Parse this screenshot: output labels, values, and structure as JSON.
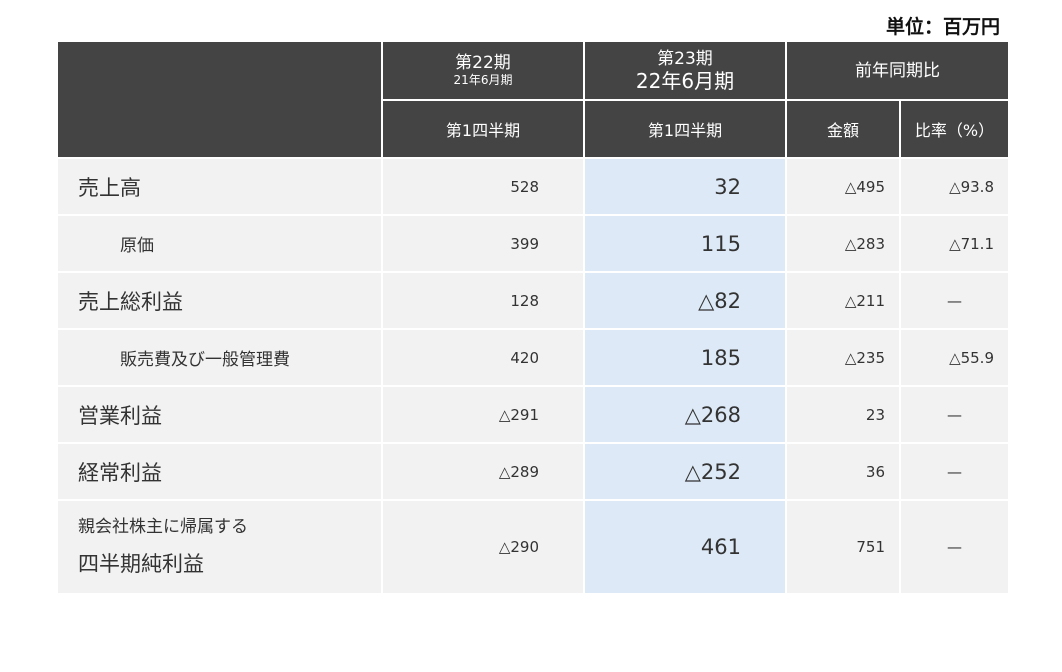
{
  "unit_label": "単位：百万円",
  "header": {
    "col_prev_main": "第22期",
    "col_prev_sub": "21年6月期",
    "col_curr_main": "第23期",
    "col_curr_sub": "22年6月期",
    "col_yoy": "前年同期比",
    "prev_quarter": "第1四半期",
    "curr_quarter": "第1四半期",
    "amount": "金額",
    "ratio": "比率（%）"
  },
  "rows": [
    {
      "label": "売上高",
      "prev": "528",
      "curr": "32",
      "amount": "△495",
      "ratio": "△93.8"
    },
    {
      "label": "原価",
      "prev": "399",
      "curr": "115",
      "amount": "△283",
      "ratio": "△71.1"
    },
    {
      "label": "売上総利益",
      "prev": "128",
      "curr": "△82",
      "amount": "△211",
      "ratio": "—"
    },
    {
      "label": "販売費及び一般管理費",
      "prev": "420",
      "curr": "185",
      "amount": "△235",
      "ratio": "△55.9"
    },
    {
      "label": "営業利益",
      "prev": "△291",
      "curr": "△268",
      "amount": "23",
      "ratio": "—"
    },
    {
      "label": "経常利益",
      "prev": "△289",
      "curr": "△252",
      "amount": "36",
      "ratio": "—"
    },
    {
      "label_line1": "親会社株主に帰属する",
      "label_line2": "四半期純利益",
      "prev": "△290",
      "curr": "461",
      "amount": "751",
      "ratio": "—"
    }
  ]
}
